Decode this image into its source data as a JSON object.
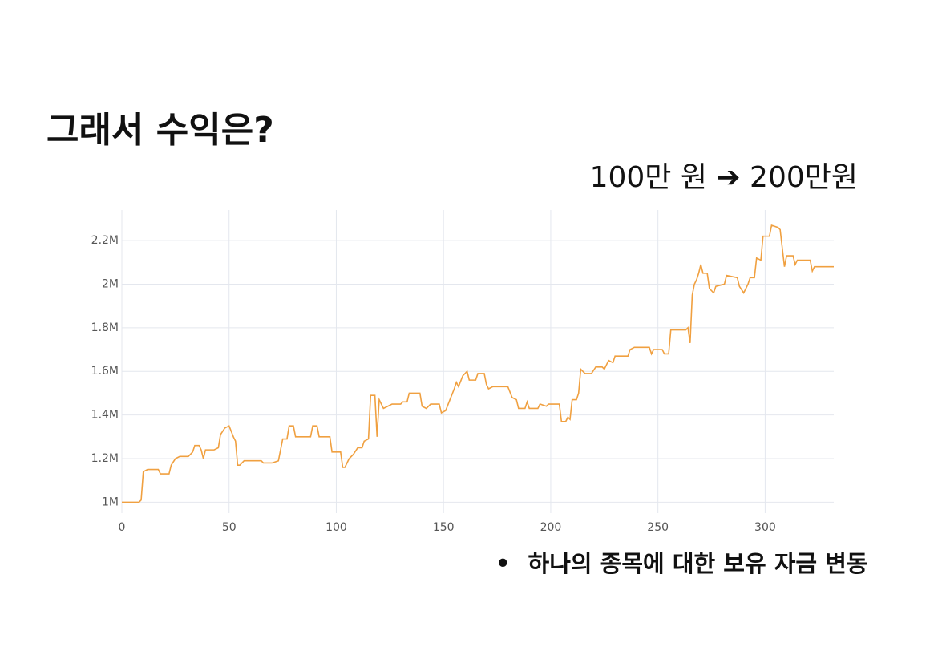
{
  "slide": {
    "title": "그래서 수익은?",
    "subtitle": "100만 원 ➔ 200만원",
    "caption": "하나의 종목에 대한 보유 자금 변동"
  },
  "chart_data": {
    "type": "line",
    "color": "#f0a040",
    "grid": true,
    "xlim": [
      0,
      332
    ],
    "xticks": [
      0,
      50,
      100,
      150,
      200,
      250,
      300
    ],
    "ylim": [
      950000,
      2340000
    ],
    "yticks": [
      {
        "value": 1000000,
        "label": "1M"
      },
      {
        "value": 1200000,
        "label": "1.2M"
      },
      {
        "value": 1400000,
        "label": "1.4M"
      },
      {
        "value": 1600000,
        "label": "1.6M"
      },
      {
        "value": 1800000,
        "label": "1.8M"
      },
      {
        "value": 2000000,
        "label": "2M"
      },
      {
        "value": 2200000,
        "label": "2.2M"
      }
    ],
    "x": [
      0,
      8,
      9,
      10,
      12,
      17,
      18,
      22,
      23,
      25,
      27,
      31,
      33,
      34,
      36,
      37,
      38,
      39,
      43,
      45,
      46,
      48,
      50,
      52,
      53,
      54,
      55,
      57,
      65,
      66,
      70,
      73,
      75,
      77,
      78,
      80,
      81,
      88,
      89,
      91,
      92,
      97,
      98,
      102,
      103,
      104,
      106,
      108,
      110,
      112,
      113,
      115,
      116,
      118,
      119,
      120,
      122,
      124,
      126,
      130,
      131,
      133,
      134,
      139,
      140,
      142,
      144,
      148,
      149,
      151,
      153,
      155,
      156,
      157,
      159,
      161,
      162,
      165,
      166,
      169,
      170,
      171,
      173,
      180,
      182,
      184,
      185,
      188,
      189,
      190,
      194,
      195,
      198,
      199,
      204,
      205,
      207,
      208,
      209,
      210,
      212,
      213,
      214,
      216,
      219,
      221,
      224,
      225,
      226,
      227,
      229,
      230,
      236,
      237,
      239,
      246,
      247,
      248,
      252,
      253,
      255,
      256,
      263,
      264,
      265,
      266,
      267,
      268,
      269,
      270,
      271,
      273,
      274,
      276,
      277,
      281,
      282,
      287,
      288,
      290,
      292,
      293,
      295,
      296,
      298,
      299,
      302,
      303,
      306,
      307,
      309,
      310,
      313,
      314,
      315,
      321,
      322,
      323,
      332
    ],
    "values": [
      1000000,
      1000000,
      1010000,
      1140000,
      1150000,
      1150000,
      1130000,
      1130000,
      1170000,
      1200000,
      1210000,
      1210000,
      1230000,
      1260000,
      1260000,
      1240000,
      1200000,
      1240000,
      1240000,
      1250000,
      1310000,
      1340000,
      1350000,
      1300000,
      1280000,
      1170000,
      1170000,
      1190000,
      1190000,
      1180000,
      1180000,
      1190000,
      1290000,
      1290000,
      1350000,
      1350000,
      1300000,
      1300000,
      1350000,
      1350000,
      1300000,
      1300000,
      1230000,
      1230000,
      1160000,
      1160000,
      1200000,
      1220000,
      1250000,
      1250000,
      1280000,
      1290000,
      1490000,
      1490000,
      1300000,
      1470000,
      1430000,
      1440000,
      1450000,
      1450000,
      1460000,
      1460000,
      1500000,
      1500000,
      1440000,
      1430000,
      1450000,
      1450000,
      1410000,
      1420000,
      1470000,
      1520000,
      1550000,
      1530000,
      1580000,
      1600000,
      1560000,
      1560000,
      1590000,
      1590000,
      1540000,
      1520000,
      1530000,
      1530000,
      1480000,
      1470000,
      1430000,
      1430000,
      1460000,
      1430000,
      1430000,
      1450000,
      1440000,
      1450000,
      1450000,
      1370000,
      1370000,
      1390000,
      1380000,
      1470000,
      1470000,
      1500000,
      1610000,
      1590000,
      1590000,
      1620000,
      1620000,
      1610000,
      1630000,
      1650000,
      1640000,
      1670000,
      1670000,
      1700000,
      1710000,
      1710000,
      1680000,
      1700000,
      1700000,
      1680000,
      1680000,
      1790000,
      1790000,
      1800000,
      1730000,
      1950000,
      2000000,
      2020000,
      2050000,
      2090000,
      2050000,
      2050000,
      1980000,
      1960000,
      1990000,
      2000000,
      2040000,
      2030000,
      1990000,
      1960000,
      2000000,
      2030000,
      2030000,
      2120000,
      2110000,
      2220000,
      2220000,
      2270000,
      2260000,
      2250000,
      2080000,
      2130000,
      2130000,
      2090000,
      2110000,
      2110000,
      2060000,
      2080000,
      2080000
    ]
  }
}
